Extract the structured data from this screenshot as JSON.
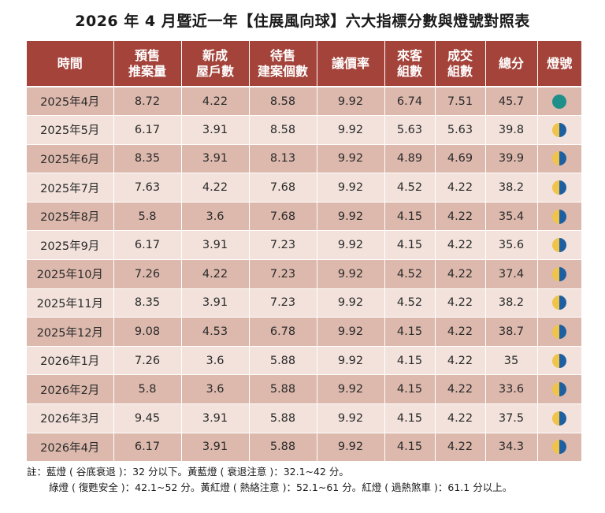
{
  "title": "2026 年 4 月暨近一年【住展風向球】六大指標分數與燈號對照表",
  "headers": [
    [
      "時間",
      ""
    ],
    [
      "預售",
      "推案量"
    ],
    [
      "新成",
      "屋戶數"
    ],
    [
      "待售",
      "建案個數"
    ],
    [
      "議價率",
      ""
    ],
    [
      "來客",
      "組數"
    ],
    [
      "成交",
      "組數"
    ],
    [
      "總分",
      ""
    ],
    [
      "燈號",
      ""
    ]
  ],
  "rows": [
    {
      "time": "2025年4月",
      "presale": "8.72",
      "newhouse": "4.22",
      "pending": "8.58",
      "bargain": "9.92",
      "visitors": "6.74",
      "deals": "7.51",
      "total": "45.7",
      "light": "teal"
    },
    {
      "time": "2025年5月",
      "presale": "6.17",
      "newhouse": "3.91",
      "pending": "8.58",
      "bargain": "9.92",
      "visitors": "5.63",
      "deals": "5.63",
      "total": "39.8",
      "light": "yellow-blue"
    },
    {
      "time": "2025年6月",
      "presale": "8.35",
      "newhouse": "3.91",
      "pending": "8.13",
      "bargain": "9.92",
      "visitors": "4.89",
      "deals": "4.69",
      "total": "39.9",
      "light": "yellow-blue"
    },
    {
      "time": "2025年7月",
      "presale": "7.63",
      "newhouse": "4.22",
      "pending": "7.68",
      "bargain": "9.92",
      "visitors": "4.52",
      "deals": "4.22",
      "total": "38.2",
      "light": "yellow-blue"
    },
    {
      "time": "2025年8月",
      "presale": "5.8",
      "newhouse": "3.6",
      "pending": "7.68",
      "bargain": "9.92",
      "visitors": "4.15",
      "deals": "4.22",
      "total": "35.4",
      "light": "yellow-blue"
    },
    {
      "time": "2025年9月",
      "presale": "6.17",
      "newhouse": "3.91",
      "pending": "7.23",
      "bargain": "9.92",
      "visitors": "4.15",
      "deals": "4.22",
      "total": "35.6",
      "light": "yellow-blue"
    },
    {
      "time": "2025年10月",
      "presale": "7.26",
      "newhouse": "4.22",
      "pending": "7.23",
      "bargain": "9.92",
      "visitors": "4.52",
      "deals": "4.22",
      "total": "37.4",
      "light": "yellow-blue"
    },
    {
      "time": "2025年11月",
      "presale": "8.35",
      "newhouse": "3.91",
      "pending": "7.23",
      "bargain": "9.92",
      "visitors": "4.52",
      "deals": "4.22",
      "total": "38.2",
      "light": "yellow-blue"
    },
    {
      "time": "2025年12月",
      "presale": "9.08",
      "newhouse": "4.53",
      "pending": "6.78",
      "bargain": "9.92",
      "visitors": "4.15",
      "deals": "4.22",
      "total": "38.7",
      "light": "yellow-blue"
    },
    {
      "time": "2026年1月",
      "presale": "7.26",
      "newhouse": "3.6",
      "pending": "5.88",
      "bargain": "9.92",
      "visitors": "4.15",
      "deals": "4.22",
      "total": "35",
      "light": "yellow-blue"
    },
    {
      "time": "2026年2月",
      "presale": "5.8",
      "newhouse": "3.6",
      "pending": "5.88",
      "bargain": "9.92",
      "visitors": "4.15",
      "deals": "4.22",
      "total": "33.6",
      "light": "yellow-blue"
    },
    {
      "time": "2026年3月",
      "presale": "9.45",
      "newhouse": "3.91",
      "pending": "5.88",
      "bargain": "9.92",
      "visitors": "4.15",
      "deals": "4.22",
      "total": "37.5",
      "light": "yellow-blue"
    },
    {
      "time": "2026年4月",
      "presale": "6.17",
      "newhouse": "3.91",
      "pending": "5.88",
      "bargain": "9.92",
      "visitors": "4.15",
      "deals": "4.22",
      "total": "34.3",
      "light": "yellow-blue"
    }
  ],
  "notes": {
    "line1": "註：藍燈 ( 谷底衰退 )：32 分以下。黃藍燈 ( 衰退注意 )：32.1~42 分。",
    "line2": "綠燈 ( 復甦安全 )：42.1~52 分。黃紅燈 ( 熱絡注意 )：52.1~61 分。紅燈 ( 過熱煞車 )：61.1 分以上。"
  },
  "colors": {
    "header_bg": "#a4433a",
    "row_dark": "#ddb9ad",
    "row_light": "#f2e2db",
    "light_teal": "#1f8f8a",
    "light_yellow": "#f0c34a",
    "light_blue": "#1d5fa0"
  }
}
